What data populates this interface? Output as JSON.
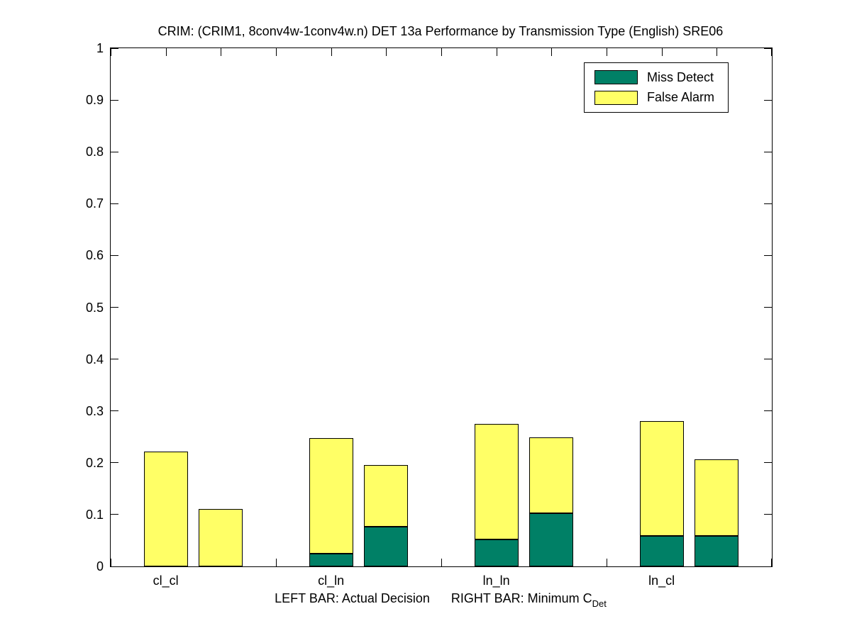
{
  "chart_data": {
    "type": "bar",
    "variant": "grouped-stacked-pairs",
    "title": "CRIM: (CRIM1, 8conv4w-1conv4w.n) DET 13a Performance by Transmission Type (English) SRE06",
    "categories": [
      "cl_cl",
      "cl_ln",
      "ln_ln",
      "ln_cl"
    ],
    "pair_meaning": {
      "left_bar": "Actual Decision",
      "right_bar": "Minimum CDet"
    },
    "series": [
      {
        "name": "Miss Detect",
        "color": "#008066",
        "left_bar_values": [
          0.0,
          0.025,
          0.052,
          0.059
        ],
        "right_bar_values": [
          0.0,
          0.077,
          0.103,
          0.059
        ]
      },
      {
        "name": "False Alarm",
        "color": "#FFFF66",
        "left_bar_values": [
          0.222,
          0.223,
          0.223,
          0.222
        ],
        "right_bar_values": [
          0.111,
          0.119,
          0.146,
          0.148
        ]
      }
    ],
    "left_bar_totals": [
      0.222,
      0.248,
      0.275,
      0.281
    ],
    "right_bar_totals": [
      0.111,
      0.196,
      0.249,
      0.207
    ],
    "xlabel": {
      "left_part": "LEFT BAR: Actual Decision",
      "right_part": "RIGHT BAR: Minimum C",
      "right_subscript": "Det"
    },
    "ylim": [
      0,
      1
    ],
    "yticks": [
      0,
      0.1,
      0.2,
      0.3,
      0.4,
      0.5,
      0.6,
      0.7,
      0.8,
      0.9,
      1
    ],
    "ytick_labels": [
      "0",
      "0.1",
      "0.2",
      "0.3",
      "0.4",
      "0.5",
      "0.6",
      "0.7",
      "0.8",
      "0.9",
      "1"
    ],
    "xlim": [
      0.6667,
      4.6667
    ],
    "xtick_step": 0.33333,
    "bar_width_units": 0.2667,
    "pair_offset_units": 0.33333,
    "grid": false,
    "plot_background": "#FFFFFF",
    "axis_color": "#000000",
    "legend": {
      "position": "top-right",
      "entries": [
        {
          "label": "Miss Detect",
          "color": "#008066"
        },
        {
          "label": "False Alarm",
          "color": "#FFFF66"
        }
      ]
    }
  }
}
